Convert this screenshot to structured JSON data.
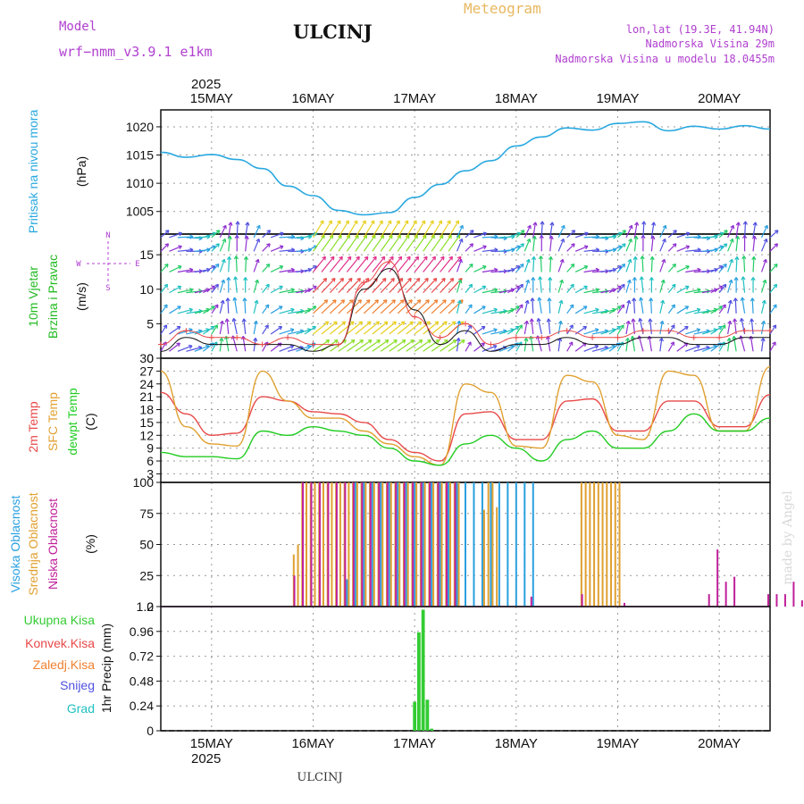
{
  "header": {
    "model_label": "Model",
    "model_name": "wrf−nmm_v3.9.1 e1km",
    "station": "ULCINJ",
    "product": "Meteogram",
    "lonlat": "lon,lat (19.3E, 41.94N)",
    "altitude": "Nadmorska Visina 29m",
    "model_altitude": "Nadmorska Visina u modelu 18.0455m",
    "credit": "made by Angel",
    "footer_station": "ULCINJ"
  },
  "colors": {
    "pressure": "#29a8e0",
    "t2m": "#e84848",
    "sfc": "#e0a030",
    "dewpt": "#22cc22",
    "high_cloud": "#2aa0e0",
    "mid_cloud": "#e0a030",
    "low_cloud": "#c0209a",
    "total_precip": "#33cc33",
    "conv_precip": "#e84848",
    "frozen_precip": "#f08030",
    "snow": "#5050e0",
    "hail": "#20c0c0",
    "wind_label": "#22bb22",
    "model_text": "#b040d0"
  },
  "time_axis": {
    "year": "2025",
    "ticks": [
      "15MAY",
      "16MAY",
      "17MAY",
      "18MAY",
      "19MAY",
      "20MAY"
    ],
    "start": "2025-05-14T12:00",
    "end": "2025-05-20T12:00"
  },
  "panels": {
    "pressure": {
      "ylabel_1": "Pritisak na nivou mora",
      "unit": "(hPa)"
    },
    "wind": {
      "ylabel_1": "10m Vjetar",
      "ylabel_2": "Brzina i Pravac",
      "unit": "(m/s)",
      "compass_n": "N",
      "compass_s": "S",
      "compass_e": "E",
      "compass_w": "W"
    },
    "temp": {
      "ylabel_1": "2m Temp",
      "ylabel_2": "SFC Temp",
      "ylabel_3": "dewpt Temp",
      "unit": "(C)"
    },
    "cloud": {
      "ylabel_1": "Visoka Oblacnost",
      "ylabel_2": "Srednja Oblacnost",
      "ylabel_3": "Niska Oblacnost",
      "unit": "(%)"
    },
    "precip": {
      "legend": [
        "Ukupna Kisa",
        "Konvek.Kisa",
        "Zaledj.Kisa",
        "Snijeg",
        "Grad"
      ],
      "ylabel": "1hr Precip (mm)"
    }
  },
  "chart_data": [
    {
      "type": "line",
      "name": "pressure",
      "ylim": [
        1001,
        1023
      ],
      "yticks": [
        1005,
        1010,
        1015,
        1020
      ],
      "grid": true,
      "x": [
        "2025-05-14T12:00",
        "2025-05-14T18:00",
        "2025-05-15T00:00",
        "2025-05-15T06:00",
        "2025-05-15T12:00",
        "2025-05-15T18:00",
        "2025-05-16T00:00",
        "2025-05-16T06:00",
        "2025-05-16T12:00",
        "2025-05-16T18:00",
        "2025-05-17T00:00",
        "2025-05-17T06:00",
        "2025-05-17T12:00",
        "2025-05-17T18:00",
        "2025-05-18T00:00",
        "2025-05-18T06:00",
        "2025-05-18T12:00",
        "2025-05-18T18:00",
        "2025-05-19T00:00",
        "2025-05-19T06:00",
        "2025-05-19T12:00",
        "2025-05-19T18:00",
        "2025-05-20T00:00",
        "2025-05-20T06:00",
        "2025-05-20T12:00"
      ],
      "values": [
        1015.5,
        1014.6,
        1015.1,
        1014.2,
        1012.6,
        1009.5,
        1007.8,
        1005.2,
        1004.4,
        1004.8,
        1007.5,
        1009.8,
        1012.2,
        1014.0,
        1016.6,
        1018.2,
        1019.8,
        1019.4,
        1020.6,
        1020.9,
        1019.3,
        1020.1,
        1019.6,
        1020.2,
        1019.6
      ]
    },
    {
      "type": "line",
      "name": "wind_speed",
      "ylim": [
        0,
        18
      ],
      "yticks": [
        0,
        5,
        10,
        15
      ],
      "grid": true,
      "x": [
        "2025-05-14T12:00",
        "2025-05-14T18:00",
        "2025-05-15T00:00",
        "2025-05-15T06:00",
        "2025-05-15T12:00",
        "2025-05-15T18:00",
        "2025-05-16T00:00",
        "2025-05-16T06:00",
        "2025-05-16T12:00",
        "2025-05-16T18:00",
        "2025-05-17T00:00",
        "2025-05-17T06:00",
        "2025-05-17T12:00",
        "2025-05-17T18:00",
        "2025-05-18T00:00",
        "2025-05-18T06:00",
        "2025-05-18T12:00",
        "2025-05-18T18:00",
        "2025-05-19T00:00",
        "2025-05-19T06:00",
        "2025-05-19T12:00",
        "2025-05-19T18:00",
        "2025-05-20T00:00",
        "2025-05-20T06:00",
        "2025-05-20T12:00"
      ],
      "series": [
        {
          "values": [
            2,
            4,
            3,
            3,
            2,
            3,
            2,
            2,
            11,
            14,
            6,
            3,
            5,
            2,
            3,
            3,
            4,
            3,
            3,
            4,
            4,
            3,
            3,
            4,
            4
          ]
        },
        {
          "values": [
            1,
            3,
            2,
            2,
            2,
            2,
            1,
            2,
            10,
            13,
            7,
            2,
            4,
            1,
            2,
            2,
            3,
            2,
            2,
            3,
            3,
            2,
            2,
            3,
            3
          ]
        }
      ]
    },
    {
      "type": "line",
      "name": "temperature",
      "ylim": [
        1,
        30
      ],
      "yticks": [
        3,
        6,
        9,
        12,
        15,
        18,
        21,
        24,
        27,
        30
      ],
      "grid": true,
      "x": [
        "2025-05-14T12:00",
        "2025-05-14T18:00",
        "2025-05-15T00:00",
        "2025-05-15T06:00",
        "2025-05-15T12:00",
        "2025-05-15T18:00",
        "2025-05-16T00:00",
        "2025-05-16T06:00",
        "2025-05-16T12:00",
        "2025-05-16T18:00",
        "2025-05-17T00:00",
        "2025-05-17T06:00",
        "2025-05-17T12:00",
        "2025-05-17T18:00",
        "2025-05-18T00:00",
        "2025-05-18T06:00",
        "2025-05-18T12:00",
        "2025-05-18T18:00",
        "2025-05-19T00:00",
        "2025-05-19T06:00",
        "2025-05-19T12:00",
        "2025-05-19T18:00",
        "2025-05-20T00:00",
        "2025-05-20T06:00",
        "2025-05-20T12:00"
      ],
      "series": [
        {
          "name": "2m Temp",
          "color": "t2m",
          "values": [
            22,
            17,
            12,
            12.5,
            21,
            20,
            17.5,
            17,
            15,
            11,
            8,
            6,
            17,
            17.5,
            11,
            11,
            20,
            20.5,
            13,
            13,
            20,
            20,
            14,
            14,
            21.5
          ]
        },
        {
          "name": "SFC Temp",
          "color": "sfc",
          "values": [
            27,
            14,
            10,
            9.5,
            27,
            20,
            16,
            16,
            13,
            10,
            7,
            5,
            24,
            22,
            9.5,
            9,
            26,
            24.5,
            12,
            11,
            27,
            26,
            13,
            13,
            28
          ]
        },
        {
          "name": "dewpt Temp",
          "color": "dewpt",
          "values": [
            8,
            7,
            7,
            6.5,
            13,
            12,
            14,
            13,
            12,
            9,
            6,
            5,
            10,
            12,
            9,
            6,
            11,
            13,
            9,
            9,
            13,
            17,
            13,
            13,
            16
          ]
        }
      ]
    },
    {
      "type": "bar",
      "name": "cloud_cover",
      "ylim": [
        0,
        100
      ],
      "yticks": [
        0,
        25,
        50,
        75,
        100
      ],
      "grid": true,
      "series": [
        {
          "name": "Visoka Oblacnost",
          "color": "high_cloud",
          "x_hours": [
            12,
            14,
            16,
            18,
            20,
            22,
            24,
            26,
            28,
            30,
            32,
            34,
            36,
            38,
            40,
            42,
            44,
            46,
            48,
            50,
            52,
            54,
            56,
            58,
            60,
            62,
            64,
            66,
            68,
            70,
            72,
            74,
            76,
            78,
            80,
            82,
            84,
            86,
            88,
            90,
            92,
            94,
            96,
            98,
            100,
            102,
            104,
            106,
            108,
            110,
            112,
            114,
            116,
            118,
            120,
            122,
            124,
            126,
            128,
            130,
            132,
            134,
            136,
            138,
            140,
            142
          ],
          "values": [
            0,
            0,
            0,
            0,
            0,
            0,
            0,
            0,
            0,
            0,
            0,
            0,
            0,
            0,
            0,
            0,
            22,
            100,
            100,
            100,
            100,
            100,
            100,
            100,
            100,
            100,
            100,
            100,
            100,
            100,
            100,
            100,
            100,
            100,
            100,
            100,
            100,
            100,
            100,
            0,
            0,
            0,
            0,
            0,
            0,
            0,
            0,
            0,
            0,
            0,
            0,
            0,
            0,
            0,
            0,
            0,
            0,
            0,
            0,
            0,
            0,
            0,
            0,
            0,
            0,
            0
          ]
        },
        {
          "name": "Srednja Oblacnost",
          "color": "mid_cloud",
          "x_hours": [
            31,
            32,
            33,
            34,
            35,
            36,
            37,
            38,
            39,
            40,
            41,
            42,
            43,
            44,
            45,
            46,
            47,
            48,
            49,
            50,
            51,
            52,
            53,
            54,
            55,
            56,
            57,
            58,
            59,
            60,
            61,
            62,
            63,
            64,
            65,
            66,
            67,
            68,
            69,
            70,
            76,
            77,
            78,
            79,
            99,
            100,
            101,
            102,
            103,
            104,
            105,
            106,
            107,
            108
          ],
          "values": [
            42,
            50,
            100,
            100,
            100,
            100,
            100,
            100,
            100,
            100,
            100,
            100,
            100,
            100,
            100,
            100,
            100,
            100,
            100,
            100,
            100,
            100,
            100,
            100,
            100,
            100,
            100,
            100,
            100,
            100,
            100,
            100,
            100,
            100,
            100,
            100,
            100,
            100,
            100,
            100,
            78,
            100,
            100,
            80,
            100,
            100,
            100,
            100,
            100,
            100,
            100,
            100,
            100,
            100
          ]
        },
        {
          "name": "Niska Oblacnost",
          "color": "low_cloud",
          "x_hours": [
            32,
            34,
            36,
            38,
            40,
            42,
            44,
            46,
            48,
            50,
            52,
            54,
            56,
            58,
            60,
            62,
            64,
            66,
            68,
            70,
            88,
            100,
            110,
            130,
            132,
            134,
            136,
            138,
            144,
            146,
            148,
            150,
            152,
            154,
            156
          ],
          "values": [
            25,
            100,
            100,
            100,
            100,
            100,
            100,
            100,
            100,
            100,
            100,
            100,
            100,
            100,
            100,
            100,
            100,
            100,
            100,
            100,
            8,
            10,
            3,
            10,
            46,
            20,
            24,
            0,
            10,
            10,
            10,
            20,
            5,
            40,
            10
          ]
        }
      ]
    },
    {
      "type": "bar",
      "name": "precipitation",
      "ylim": [
        0,
        1.2
      ],
      "yticks": [
        0,
        0.24,
        0.48,
        0.72,
        0.96,
        1.2
      ],
      "grid": true,
      "series": [
        {
          "name": "Ukupna Kisa",
          "color": "total_precip",
          "x_hours": [
            60,
            61,
            62,
            63,
            64
          ],
          "values": [
            0.28,
            0.95,
            1.17,
            0.3,
            0.02
          ]
        }
      ]
    }
  ]
}
